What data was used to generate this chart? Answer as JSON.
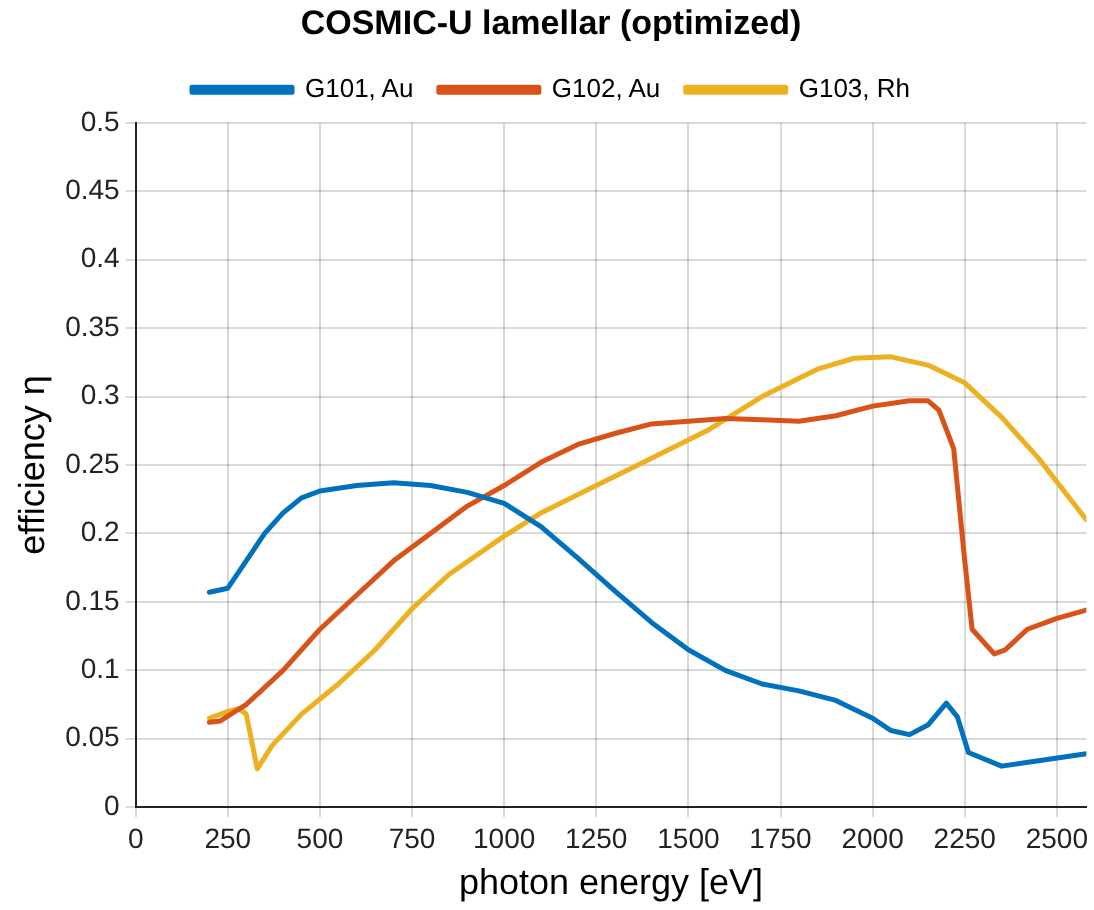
{
  "chart_data": {
    "type": "line",
    "title": "COSMIC-U lamellar (optimized)",
    "xlabel": "photon energy [eV]",
    "ylabel": "efficiency η",
    "xlim": [
      0,
      2580
    ],
    "xticks": [
      0,
      250,
      500,
      750,
      1000,
      1250,
      1500,
      1750,
      2000,
      2250,
      2500
    ],
    "ylim": [
      0,
      0.5
    ],
    "yticks": [
      0,
      0.05,
      0.1,
      0.15,
      0.2,
      0.25,
      0.3,
      0.35,
      0.4,
      0.45,
      0.5
    ],
    "grid": true,
    "legend": "top",
    "marker": "none",
    "line_style": "solid",
    "series": [
      {
        "name": "G101, Au",
        "color": "#0072bd",
        "x": [
          200,
          250,
          300,
          350,
          400,
          450,
          500,
          600,
          700,
          800,
          900,
          1000,
          1100,
          1200,
          1300,
          1400,
          1500,
          1600,
          1700,
          1800,
          1900,
          2000,
          2050,
          2100,
          2150,
          2200,
          2230,
          2260,
          2350,
          2450,
          2580
        ],
        "values": [
          0.157,
          0.16,
          0.18,
          0.2,
          0.215,
          0.226,
          0.231,
          0.235,
          0.237,
          0.235,
          0.23,
          0.222,
          0.205,
          0.182,
          0.158,
          0.135,
          0.115,
          0.1,
          0.09,
          0.085,
          0.078,
          0.065,
          0.056,
          0.053,
          0.06,
          0.076,
          0.066,
          0.04,
          0.03,
          0.034,
          0.039
        ]
      },
      {
        "name": "G102, Au",
        "color": "#d95319",
        "x": [
          200,
          230,
          270,
          300,
          400,
          500,
          600,
          700,
          800,
          900,
          1000,
          1100,
          1200,
          1300,
          1400,
          1500,
          1600,
          1700,
          1800,
          1900,
          2000,
          2100,
          2150,
          2180,
          2220,
          2250,
          2270,
          2330,
          2360,
          2420,
          2500,
          2580
        ],
        "values": [
          0.062,
          0.063,
          0.07,
          0.075,
          0.1,
          0.13,
          0.155,
          0.18,
          0.2,
          0.22,
          0.235,
          0.252,
          0.265,
          0.273,
          0.28,
          0.282,
          0.284,
          0.283,
          0.282,
          0.286,
          0.293,
          0.297,
          0.297,
          0.29,
          0.262,
          0.18,
          0.13,
          0.112,
          0.115,
          0.13,
          0.138,
          0.144
        ]
      },
      {
        "name": "G103, Rh",
        "color": "#edb120",
        "x": [
          200,
          250,
          280,
          300,
          330,
          370,
          450,
          550,
          650,
          750,
          850,
          1000,
          1100,
          1250,
          1400,
          1550,
          1700,
          1850,
          1950,
          2050,
          2150,
          2250,
          2350,
          2450,
          2580
        ],
        "values": [
          0.065,
          0.07,
          0.072,
          0.068,
          0.028,
          0.045,
          0.068,
          0.09,
          0.115,
          0.145,
          0.17,
          0.198,
          0.215,
          0.235,
          0.255,
          0.275,
          0.3,
          0.32,
          0.328,
          0.329,
          0.323,
          0.31,
          0.285,
          0.255,
          0.21
        ]
      }
    ]
  }
}
